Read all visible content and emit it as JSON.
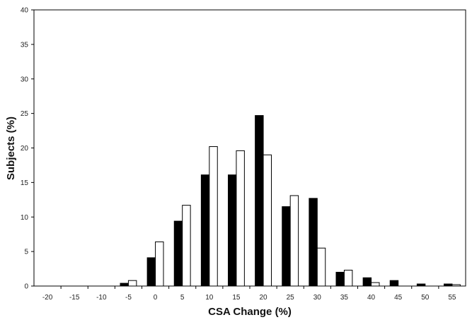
{
  "chart_data": {
    "type": "bar",
    "xlabel": "CSA Change (%)",
    "ylabel": "Subjects (%)",
    "categories": [
      "-20",
      "-15",
      "-10",
      "-5",
      "0",
      "5",
      "10",
      "15",
      "20",
      "25",
      "30",
      "35",
      "40",
      "45",
      "50",
      "55"
    ],
    "series": [
      {
        "fill": "#000000",
        "values": [
          0,
          0,
          0,
          0.4,
          4.1,
          9.4,
          16.1,
          16.1,
          24.7,
          11.5,
          12.7,
          2.0,
          1.2,
          0.8,
          0.3,
          0.3
        ]
      },
      {
        "fill": "#ffffff",
        "values": [
          0,
          0,
          0,
          0.8,
          6.4,
          11.7,
          20.2,
          19.6,
          19.0,
          13.1,
          5.5,
          2.3,
          0.5,
          0,
          0,
          0.2
        ]
      }
    ],
    "ylim": [
      0,
      40
    ],
    "yticks": [
      "0",
      "5",
      "10",
      "15",
      "20",
      "25",
      "30",
      "35",
      "40"
    ],
    "grid": false,
    "legend": false
  }
}
